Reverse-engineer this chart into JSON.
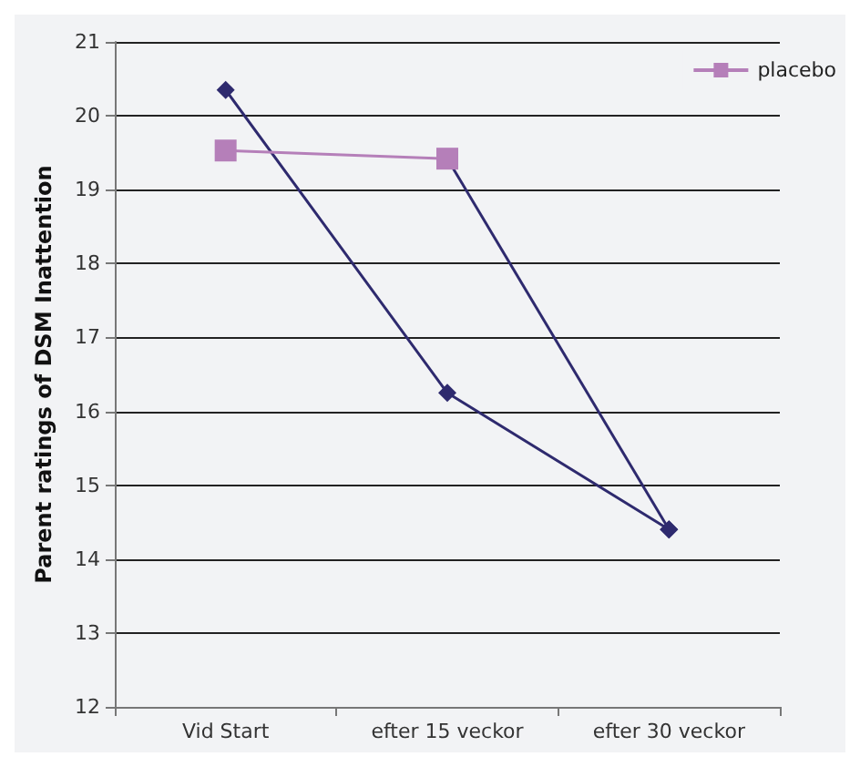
{
  "chart_data": {
    "type": "line",
    "ylabel": "Parent ratings of DSM Inattention",
    "categories": [
      "Vid Start",
      "efter 15 veckor",
      "efter 30 veckor"
    ],
    "series": [
      {
        "color": "#2e2a6e",
        "marker": "diamond",
        "values": [
          20.35,
          16.25,
          14.4
        ]
      },
      {
        "color": "#2e2a6e",
        "marker": "diamond",
        "values": [
          null,
          19.42,
          14.4
        ]
      },
      {
        "name": "placebo",
        "color": "#b57fb9",
        "marker": "square",
        "values": [
          19.53,
          19.42,
          null
        ]
      }
    ],
    "ylim": [
      12,
      21
    ],
    "yticks": [
      12,
      13,
      14,
      15,
      16,
      17,
      18,
      19,
      20,
      21
    ],
    "grid": "y",
    "legend": "top right"
  }
}
